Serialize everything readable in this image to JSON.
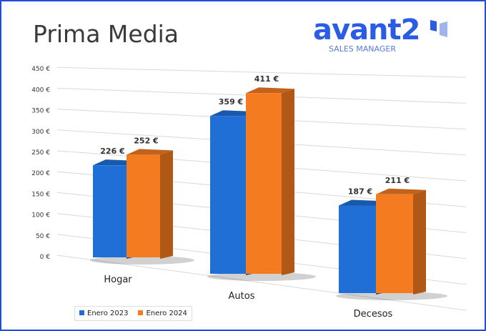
{
  "chart_data": {
    "type": "bar",
    "title": "Prima Media",
    "categories": [
      "Hogar",
      "Autos",
      "Decesos"
    ],
    "series": [
      {
        "name": "Enero 2023",
        "values": [
          226,
          359,
          187
        ],
        "color": "#1f6fd6",
        "labels": [
          "226 €",
          "359 €",
          "187 €"
        ]
      },
      {
        "name": "Enero 2024",
        "values": [
          252,
          411,
          211
        ],
        "color": "#f47b20",
        "labels": [
          "252 €",
          "411 €",
          "211 €"
        ]
      }
    ],
    "ylim": [
      0,
      450
    ],
    "yticks": [
      "0 €",
      "50 €",
      "100 €",
      "150 €",
      "200 €",
      "250 €",
      "300 €",
      "350 €",
      "400 €",
      "450 €"
    ],
    "grid": true,
    "legend": "bottom-left",
    "style": "3d"
  },
  "logo": {
    "word": "avant2",
    "sub": "SALES MANAGER"
  }
}
